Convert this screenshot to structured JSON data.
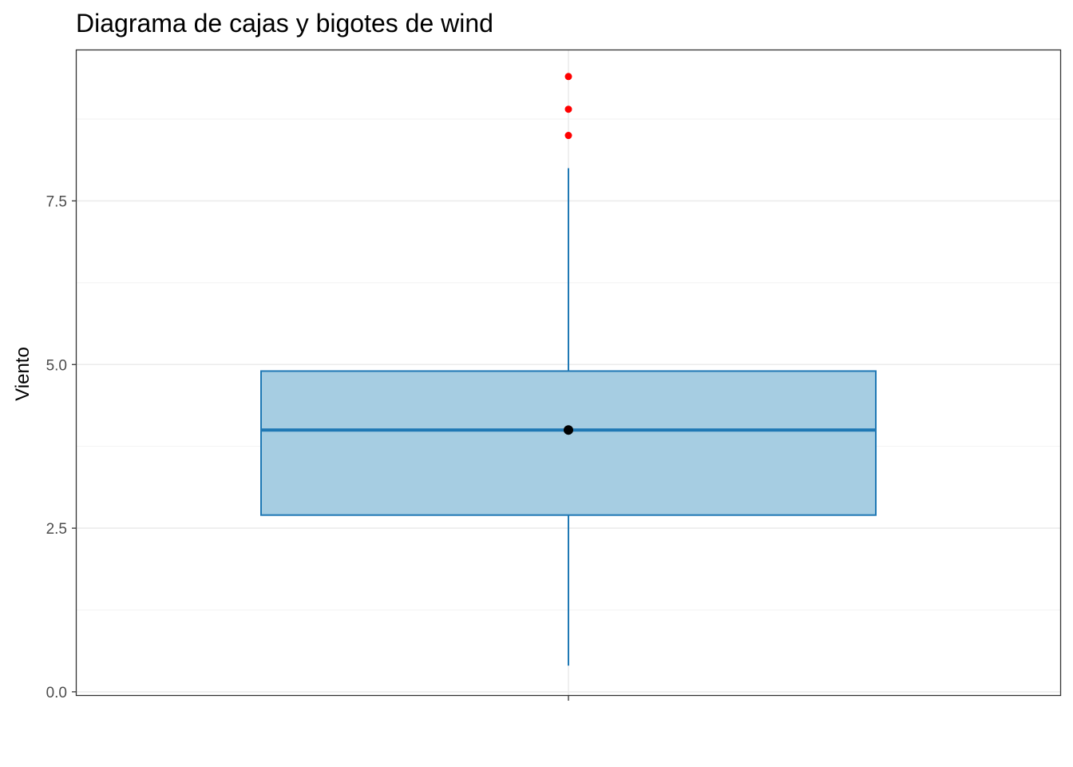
{
  "chart_data": {
    "type": "boxplot",
    "title": "Diagrama de cajas y bigotes de wind",
    "xlabel": "",
    "ylabel": "Viento",
    "ylim": [
      -0.05,
      9.8
    ],
    "y_ticks": [
      0.0,
      2.5,
      5.0,
      7.5
    ],
    "y_tick_labels": [
      "0.0",
      "2.5",
      "5.0",
      "7.5"
    ],
    "y_minor_ticks": [
      1.25,
      3.75,
      6.25,
      8.75
    ],
    "grid": true,
    "box": {
      "whisker_low": 0.4,
      "q1": 2.7,
      "median": 4.0,
      "q3": 4.9,
      "whisker_high": 8.0,
      "mean": 4.0
    },
    "outliers": [
      8.5,
      8.9,
      9.4
    ],
    "colors": {
      "box_fill": "#a6cde2",
      "box_line": "#1f78b4",
      "outlier": "#ff0000",
      "mean_point": "#000000",
      "grid": "#ebebeb",
      "panel_border": "#333333"
    }
  }
}
